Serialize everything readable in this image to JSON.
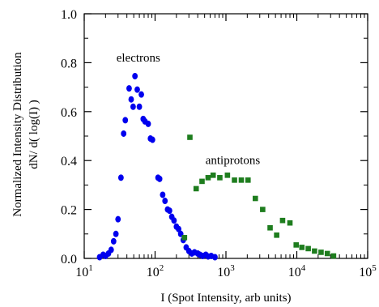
{
  "chart_data": {
    "type": "scatter",
    "title": "",
    "xlabel": "I (Spot Intensity, arb units)",
    "ylabel_line1": "Normalized Intensity Distribution",
    "ylabel_line2": "dN/ d( log(I) )",
    "xscale": "log",
    "xlim": [
      10,
      100000
    ],
    "ylim": [
      0,
      1.0
    ],
    "grid": false,
    "legend": "none",
    "x_tick_values": [
      10,
      100,
      1000,
      10000,
      100000
    ],
    "x_tick_labels": [
      {
        "base": "10",
        "exp": "1"
      },
      {
        "base": "10",
        "exp": "2"
      },
      {
        "base": "10",
        "exp": "3"
      },
      {
        "base": "10",
        "exp": "4"
      },
      {
        "base": "10",
        "exp": "5"
      }
    ],
    "y_tick_values": [
      0,
      0.2,
      0.4,
      0.6,
      0.8,
      1.0
    ],
    "y_tick_labels": [
      "0.0",
      "0.2",
      "0.4",
      "0.6",
      "0.8",
      "1.0"
    ],
    "annotations": [
      {
        "text": "electrons",
        "x": 58,
        "y": 0.805
      },
      {
        "text": "antiprotons",
        "x": 1250,
        "y": 0.385
      }
    ],
    "series": [
      {
        "name": "electrons",
        "marker": "circle",
        "color": "#0000ee",
        "points": [
          [
            16.5,
            0.005
          ],
          [
            18.5,
            0.015
          ],
          [
            20,
            0.01
          ],
          [
            22,
            0.02
          ],
          [
            24,
            0.035
          ],
          [
            26,
            0.07
          ],
          [
            28,
            0.1
          ],
          [
            30,
            0.16
          ],
          [
            33,
            0.33
          ],
          [
            36,
            0.51
          ],
          [
            38,
            0.565
          ],
          [
            43,
            0.695
          ],
          [
            46,
            0.65
          ],
          [
            49,
            0.62
          ],
          [
            52,
            0.745
          ],
          [
            56,
            0.69
          ],
          [
            60,
            0.62
          ],
          [
            64,
            0.67
          ],
          [
            68,
            0.57
          ],
          [
            72,
            0.56
          ],
          [
            80,
            0.55
          ],
          [
            86,
            0.49
          ],
          [
            92,
            0.485
          ],
          [
            110,
            0.33
          ],
          [
            116,
            0.325
          ],
          [
            128,
            0.26
          ],
          [
            138,
            0.235
          ],
          [
            150,
            0.2
          ],
          [
            160,
            0.195
          ],
          [
            172,
            0.17
          ],
          [
            185,
            0.155
          ],
          [
            200,
            0.13
          ],
          [
            215,
            0.12
          ],
          [
            230,
            0.1
          ],
          [
            250,
            0.075
          ],
          [
            275,
            0.045
          ],
          [
            300,
            0.03
          ],
          [
            330,
            0.02
          ],
          [
            360,
            0.025
          ],
          [
            400,
            0.02
          ],
          [
            430,
            0.015
          ],
          [
            470,
            0.01
          ],
          [
            520,
            0.015
          ],
          [
            560,
            0.008
          ],
          [
            620,
            0.01
          ],
          [
            700,
            0.005
          ]
        ]
      },
      {
        "name": "antiprotons",
        "marker": "square",
        "color": "#1e7d1e",
        "points": [
          [
            260,
            0.085
          ],
          [
            310,
            0.495
          ],
          [
            380,
            0.285
          ],
          [
            460,
            0.315
          ],
          [
            560,
            0.33
          ],
          [
            660,
            0.34
          ],
          [
            820,
            0.33
          ],
          [
            1050,
            0.34
          ],
          [
            1320,
            0.32
          ],
          [
            1650,
            0.32
          ],
          [
            2050,
            0.32
          ],
          [
            2600,
            0.245
          ],
          [
            3300,
            0.2
          ],
          [
            4200,
            0.125
          ],
          [
            5200,
            0.095
          ],
          [
            6300,
            0.155
          ],
          [
            8000,
            0.145
          ],
          [
            9800,
            0.055
          ],
          [
            11800,
            0.045
          ],
          [
            14500,
            0.04
          ],
          [
            17800,
            0.03
          ],
          [
            22000,
            0.025
          ],
          [
            27000,
            0.02
          ],
          [
            33000,
            0.01
          ]
        ]
      }
    ]
  }
}
